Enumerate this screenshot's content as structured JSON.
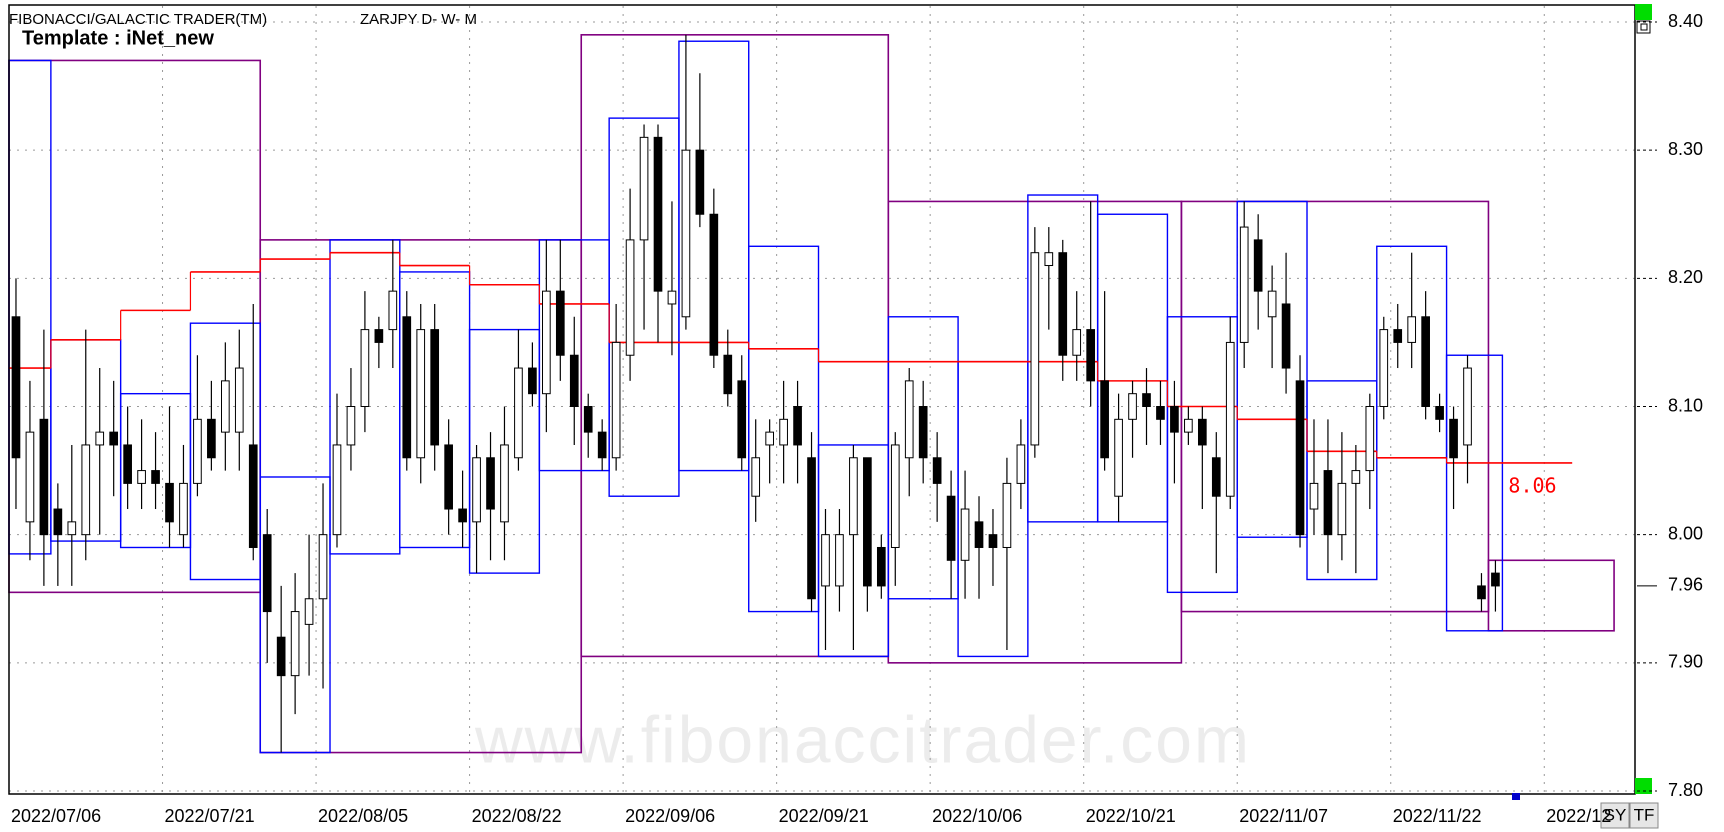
{
  "chart_data": {
    "type": "candlestick",
    "title": "FIBONACCI/GALACTIC TRADER(TM)",
    "subtitle": "ZARJPY D- W- M",
    "template": "Template : iNet_new",
    "watermark": "www.fibonaccitrader.com",
    "buttons": [
      "SY",
      "TF"
    ],
    "grid": true,
    "colors": {
      "monthly": "#800080",
      "weekly": "#0000ff",
      "level": "#ff0000",
      "up": "#ffffff",
      "down": "#000000"
    },
    "xlim": [
      -0.5,
      116
    ],
    "xticks": [
      {
        "value": 0,
        "label": "2022/07/06"
      },
      {
        "value": 11,
        "label": "2022/07/21"
      },
      {
        "value": 22,
        "label": "2022/08/05"
      },
      {
        "value": 33,
        "label": "2022/08/22"
      },
      {
        "value": 44,
        "label": "2022/09/06"
      },
      {
        "value": 55,
        "label": "2022/09/21"
      },
      {
        "value": 66,
        "label": "2022/10/06"
      },
      {
        "value": 77,
        "label": "2022/10/21"
      },
      {
        "value": 88,
        "label": "2022/11/07"
      },
      {
        "value": 99,
        "label": "2022/11/22"
      },
      {
        "value": 110,
        "label": "2022/12"
      }
    ],
    "ylim": [
      7.8,
      8.4
    ],
    "yticks": [
      {
        "value": 8.4,
        "label": "8.40"
      },
      {
        "value": 8.3,
        "label": "8.30"
      },
      {
        "value": 8.2,
        "label": "8.20"
      },
      {
        "value": 8.1,
        "label": "8.10"
      },
      {
        "value": 8.0,
        "label": "8.00"
      },
      {
        "value": 7.9,
        "label": "7.90"
      },
      {
        "value": 7.8,
        "label": "7.80"
      }
    ],
    "price_marker": 7.96,
    "candles": {
      "open": [
        8.17,
        8.01,
        8.09,
        8.02,
        8.0,
        8.0,
        8.07,
        8.08,
        8.07,
        8.04,
        8.05,
        8.04,
        8.0,
        8.04,
        8.09,
        8.08,
        8.08,
        8.07,
        8.0,
        7.92,
        7.89,
        7.93,
        7.95,
        8.0,
        8.07,
        8.1,
        8.16,
        8.16,
        8.17,
        8.06,
        8.16,
        8.07,
        8.02,
        8.01,
        8.06,
        8.01,
        8.06,
        8.13,
        8.11,
        8.19,
        8.14,
        8.1,
        8.08,
        8.06,
        8.14,
        8.23,
        8.31,
        8.18,
        8.17,
        8.3,
        8.25,
        8.14,
        8.12,
        8.03,
        8.07,
        8.07,
        8.1,
        8.06,
        7.96,
        7.96,
        8.0,
        8.06,
        7.99,
        7.99,
        8.06,
        8.1,
        8.06,
        8.03,
        7.98,
        8.01,
        8.0,
        7.99,
        8.04,
        8.07,
        8.21,
        8.22,
        8.14,
        8.16,
        8.12,
        8.03,
        8.09,
        8.11,
        8.1,
        8.1,
        8.08,
        8.09,
        8.06,
        8.03,
        8.15,
        8.23,
        8.17,
        8.18,
        8.12,
        8.02,
        8.05,
        8.0,
        8.04,
        8.05,
        8.1,
        8.16,
        8.15,
        8.17,
        8.1,
        8.09,
        8.07,
        7.96,
        7.97
      ],
      "high": [
        8.2,
        8.12,
        8.16,
        8.04,
        8.07,
        8.16,
        8.13,
        8.12,
        8.1,
        8.09,
        8.08,
        8.1,
        8.07,
        8.14,
        8.12,
        8.15,
        8.16,
        8.18,
        8.02,
        7.96,
        7.97,
        8.0,
        8.04,
        8.11,
        8.13,
        8.19,
        8.17,
        8.23,
        8.19,
        8.18,
        8.18,
        8.09,
        8.05,
        8.07,
        8.08,
        8.1,
        8.16,
        8.15,
        8.23,
        8.23,
        8.17,
        8.11,
        8.09,
        8.18,
        8.27,
        8.32,
        8.32,
        8.26,
        8.39,
        8.36,
        8.27,
        8.16,
        8.14,
        8.09,
        8.09,
        8.12,
        8.12,
        8.08,
        8.02,
        8.02,
        8.07,
        8.06,
        8.0,
        8.08,
        8.13,
        8.12,
        8.08,
        8.05,
        8.05,
        8.03,
        8.02,
        8.06,
        8.09,
        8.24,
        8.24,
        8.23,
        8.19,
        8.26,
        8.19,
        8.11,
        8.12,
        8.13,
        8.12,
        8.12,
        8.1,
        8.1,
        8.08,
        8.17,
        8.26,
        8.25,
        8.21,
        8.22,
        8.14,
        8.09,
        8.09,
        8.08,
        8.07,
        8.11,
        8.17,
        8.18,
        8.22,
        8.19,
        8.11,
        8.1,
        8.14,
        7.97,
        7.98
      ],
      "low": [
        8.02,
        7.98,
        7.96,
        7.96,
        7.96,
        7.98,
        8.0,
        8.03,
        8.02,
        8.02,
        8.02,
        7.99,
        7.99,
        8.03,
        8.05,
        8.05,
        8.05,
        7.98,
        7.9,
        7.83,
        7.86,
        7.89,
        7.88,
        7.99,
        8.05,
        8.08,
        8.13,
        8.13,
        8.05,
        8.04,
        8.05,
        8.0,
        7.99,
        7.97,
        7.98,
        7.98,
        8.05,
        8.1,
        8.08,
        8.12,
        8.07,
        8.06,
        8.05,
        8.05,
        8.12,
        8.16,
        8.15,
        8.14,
        8.16,
        8.24,
        8.13,
        8.1,
        8.05,
        8.01,
        8.04,
        8.04,
        8.04,
        7.94,
        7.91,
        7.94,
        7.91,
        7.94,
        7.95,
        7.96,
        8.03,
        8.04,
        8.01,
        7.95,
        7.95,
        7.95,
        7.96,
        7.91,
        8.02,
        8.06,
        8.16,
        8.12,
        8.12,
        8.1,
        8.05,
        8.01,
        8.06,
        8.07,
        8.07,
        8.04,
        8.07,
        8.02,
        7.97,
        8.02,
        8.13,
        8.16,
        8.13,
        8.11,
        7.99,
        8.0,
        7.97,
        7.98,
        7.97,
        8.02,
        8.09,
        8.13,
        8.13,
        8.09,
        8.08,
        8.02,
        8.04,
        7.94,
        7.94
      ],
      "close": [
        8.06,
        8.08,
        8.0,
        8.0,
        8.01,
        8.07,
        8.08,
        8.07,
        8.04,
        8.05,
        8.04,
        8.01,
        8.04,
        8.09,
        8.06,
        8.12,
        8.13,
        7.99,
        7.94,
        7.89,
        7.94,
        7.95,
        8.0,
        8.07,
        8.1,
        8.16,
        8.15,
        8.19,
        8.06,
        8.16,
        8.07,
        8.02,
        8.01,
        8.06,
        8.02,
        8.07,
        8.13,
        8.11,
        8.19,
        8.14,
        8.1,
        8.08,
        8.06,
        8.15,
        8.23,
        8.31,
        8.19,
        8.19,
        8.3,
        8.25,
        8.14,
        8.11,
        8.06,
        8.06,
        8.08,
        8.09,
        8.07,
        7.95,
        8.0,
        8.0,
        8.06,
        7.96,
        7.96,
        8.07,
        8.12,
        8.06,
        8.04,
        7.98,
        8.02,
        7.99,
        7.99,
        8.04,
        8.07,
        8.22,
        8.22,
        8.14,
        8.16,
        8.12,
        8.06,
        8.09,
        8.11,
        8.1,
        8.09,
        8.08,
        8.09,
        8.07,
        8.03,
        8.15,
        8.24,
        8.19,
        8.19,
        8.13,
        8.0,
        8.04,
        8.0,
        8.04,
        8.05,
        8.1,
        8.16,
        8.15,
        8.17,
        8.1,
        8.09,
        8.06,
        8.13,
        7.95,
        7.96
      ]
    },
    "monthly_boxes": [
      {
        "from": 0,
        "to": 17,
        "high": 8.37,
        "low": 7.955
      },
      {
        "from": 18,
        "to": 40,
        "high": 8.23,
        "low": 7.83
      },
      {
        "from": 41,
        "to": 62,
        "high": 8.39,
        "low": 7.905
      },
      {
        "from": 63,
        "to": 83,
        "high": 8.26,
        "low": 7.9
      },
      {
        "from": 84,
        "to": 105,
        "high": 8.26,
        "low": 7.94
      },
      {
        "from": 106,
        "to": 114,
        "high": 7.98,
        "low": 7.925
      }
    ],
    "weekly_boxes": [
      {
        "from": 0,
        "to": 2,
        "high": 8.37,
        "low": 7.985
      },
      {
        "from": 3,
        "to": 7,
        "high": 8.152,
        "low": 7.995
      },
      {
        "from": 8,
        "to": 12,
        "high": 8.11,
        "low": 7.99
      },
      {
        "from": 13,
        "to": 17,
        "high": 8.165,
        "low": 7.965
      },
      {
        "from": 18,
        "to": 22,
        "high": 8.045,
        "low": 7.83
      },
      {
        "from": 23,
        "to": 27,
        "high": 8.23,
        "low": 7.985
      },
      {
        "from": 28,
        "to": 32,
        "high": 8.205,
        "low": 7.99
      },
      {
        "from": 33,
        "to": 37,
        "high": 8.16,
        "low": 7.97
      },
      {
        "from": 38,
        "to": 42,
        "high": 8.23,
        "low": 8.05
      },
      {
        "from": 43,
        "to": 47,
        "high": 8.325,
        "low": 8.03
      },
      {
        "from": 48,
        "to": 52,
        "high": 8.385,
        "low": 8.05
      },
      {
        "from": 53,
        "to": 57,
        "high": 8.225,
        "low": 7.94
      },
      {
        "from": 58,
        "to": 62,
        "high": 8.07,
        "low": 7.905
      },
      {
        "from": 63,
        "to": 67,
        "high": 8.17,
        "low": 7.95
      },
      {
        "from": 68,
        "to": 72,
        "high": 8.135,
        "low": 7.905
      },
      {
        "from": 73,
        "to": 77,
        "high": 8.265,
        "low": 8.01
      },
      {
        "from": 78,
        "to": 82,
        "high": 8.25,
        "low": 8.01
      },
      {
        "from": 83,
        "to": 87,
        "high": 8.17,
        "low": 7.955
      },
      {
        "from": 88,
        "to": 92,
        "high": 8.26,
        "low": 7.998
      },
      {
        "from": 93,
        "to": 97,
        "high": 8.12,
        "low": 7.965
      },
      {
        "from": 98,
        "to": 102,
        "high": 8.225,
        "low": 8.06
      },
      {
        "from": 103,
        "to": 106,
        "high": 8.14,
        "low": 7.925
      }
    ],
    "level_line": {
      "values": [
        8.13,
        8.152,
        8.175,
        8.205,
        8.215,
        8.22,
        8.21,
        8.195,
        8.18,
        8.15,
        8.15,
        8.145,
        8.135,
        8.135,
        8.135,
        8.135,
        8.12,
        8.1,
        8.09,
        8.065,
        8.06,
        8.056
      ],
      "last_label": "8.06"
    }
  }
}
